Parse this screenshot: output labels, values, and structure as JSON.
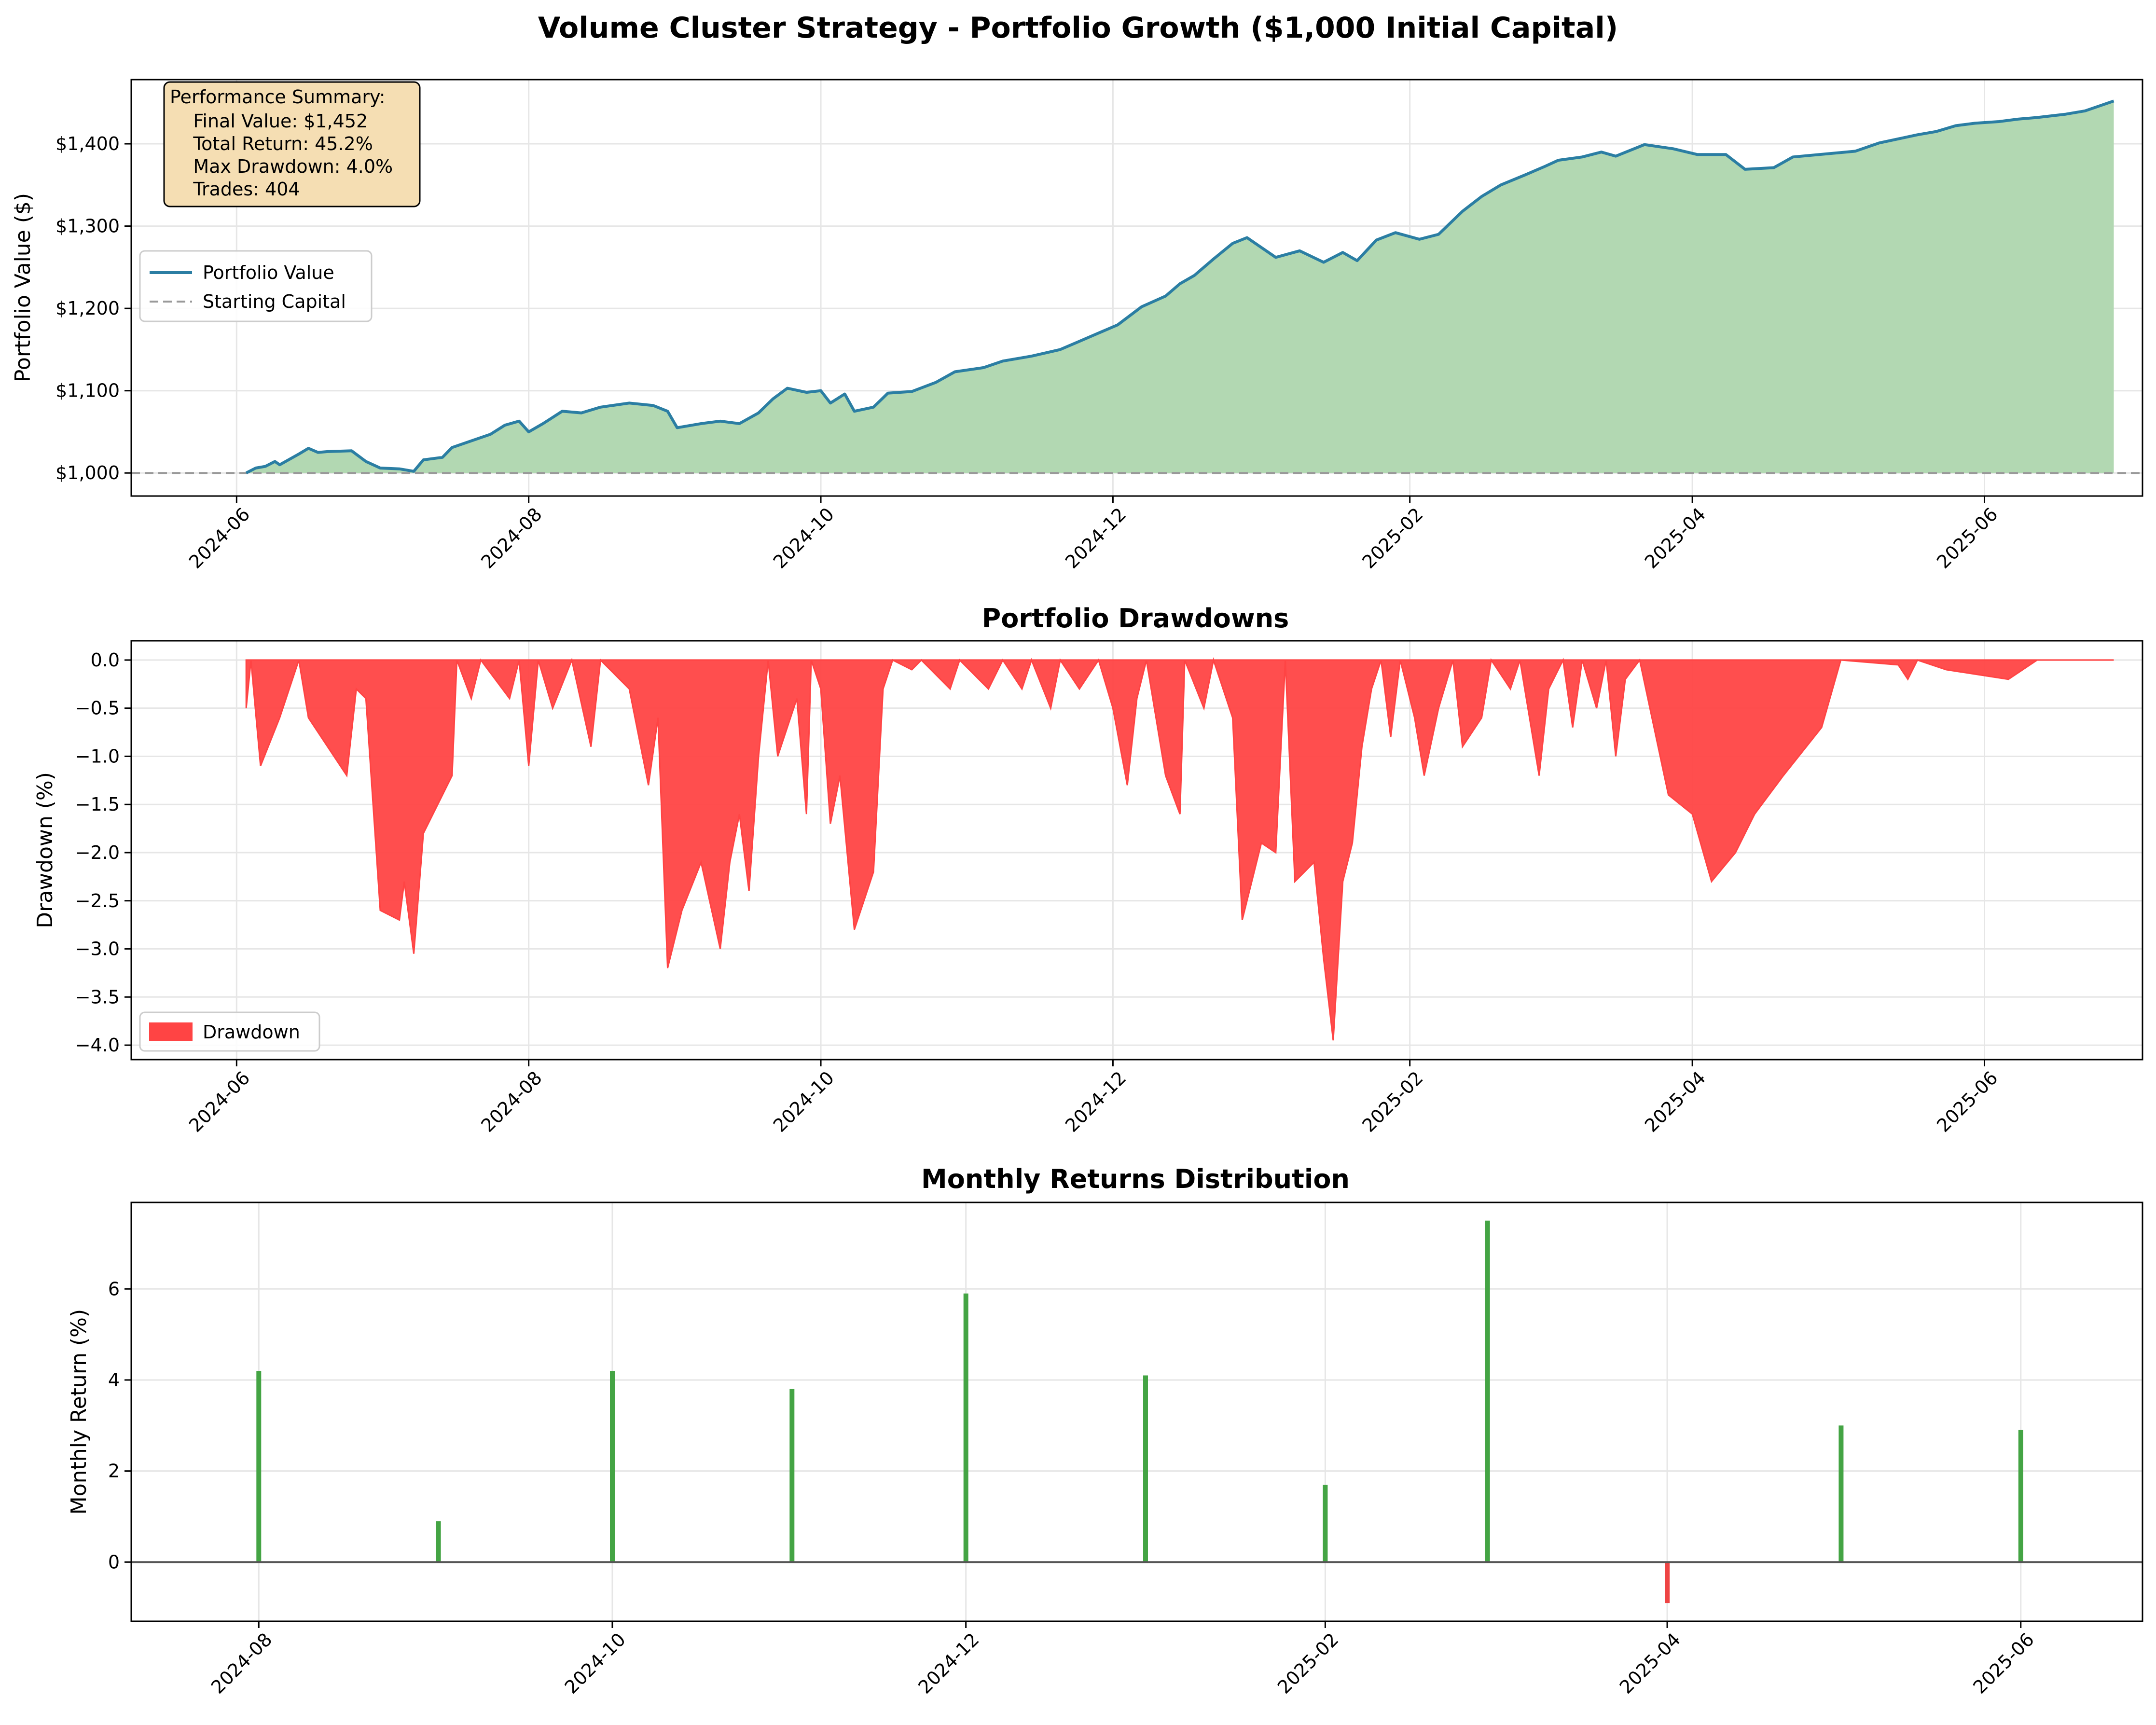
{
  "figure": {
    "title": "Volume Cluster Strategy - Portfolio Growth ($1,000 Initial Capital)"
  },
  "colors": {
    "portfolio_line": "#2b7ea3",
    "portfolio_fill": "#b2d8b2",
    "starting_capital": "#999999",
    "drawdown": "#ff4444",
    "positive_return": "#44a444",
    "negative_return": "#ee4444",
    "summary_box_bg": "#f5deb3",
    "grid": "#e6e6e6"
  },
  "annotation": {
    "lines": [
      "Performance Summary:",
      "    Final Value: $1,452",
      "    Total Return: 45.2%",
      "    Max Drawdown: 4.0%",
      "    Trades: 404"
    ]
  },
  "chart_data": [
    {
      "type": "area",
      "title": "",
      "xlabel": "",
      "ylabel": "Portfolio Value ($)",
      "x_ticks": [
        "2024-06",
        "2024-08",
        "2024-10",
        "2024-12",
        "2025-02",
        "2025-04",
        "2025-06"
      ],
      "y_ticks": [
        "$1,000",
        "$1,100",
        "$1,200",
        "$1,300",
        "$1,400"
      ],
      "ylim": [
        972,
        1478
      ],
      "grid": true,
      "legend": {
        "placement": "upper-left",
        "entries": [
          "Portfolio Value",
          "Starting Capital"
        ]
      },
      "series": [
        {
          "name": "Portfolio Value",
          "points": [
            [
              "2024-06-03",
              1000
            ],
            [
              "2024-06-05",
              1006
            ],
            [
              "2024-06-07",
              1008
            ],
            [
              "2024-06-09",
              1014
            ],
            [
              "2024-06-10",
              1010
            ],
            [
              "2024-06-14",
              1023
            ],
            [
              "2024-06-16",
              1030
            ],
            [
              "2024-06-18",
              1025
            ],
            [
              "2024-06-20",
              1026
            ],
            [
              "2024-06-25",
              1027
            ],
            [
              "2024-06-28",
              1014
            ],
            [
              "2024-07-01",
              1006
            ],
            [
              "2024-07-05",
              1005
            ],
            [
              "2024-07-08",
              1002
            ],
            [
              "2024-07-10",
              1016
            ],
            [
              "2024-07-14",
              1019
            ],
            [
              "2024-07-16",
              1031
            ],
            [
              "2024-07-21",
              1041
            ],
            [
              "2024-07-24",
              1047
            ],
            [
              "2024-07-27",
              1058
            ],
            [
              "2024-07-30",
              1063
            ],
            [
              "2024-08-01",
              1050
            ],
            [
              "2024-08-04",
              1060
            ],
            [
              "2024-08-08",
              1075
            ],
            [
              "2024-08-12",
              1073
            ],
            [
              "2024-08-16",
              1080
            ],
            [
              "2024-08-22",
              1085
            ],
            [
              "2024-08-27",
              1082
            ],
            [
              "2024-08-30",
              1075
            ],
            [
              "2024-09-01",
              1055
            ],
            [
              "2024-09-06",
              1060
            ],
            [
              "2024-09-10",
              1063
            ],
            [
              "2024-09-14",
              1060
            ],
            [
              "2024-09-18",
              1073
            ],
            [
              "2024-09-21",
              1090
            ],
            [
              "2024-09-24",
              1103
            ],
            [
              "2024-09-28",
              1098
            ],
            [
              "2024-10-01",
              1100
            ],
            [
              "2024-10-03",
              1085
            ],
            [
              "2024-10-06",
              1096
            ],
            [
              "2024-10-08",
              1075
            ],
            [
              "2024-10-12",
              1080
            ],
            [
              "2024-10-15",
              1097
            ],
            [
              "2024-10-20",
              1099
            ],
            [
              "2024-10-25",
              1110
            ],
            [
              "2024-10-29",
              1123
            ],
            [
              "2024-11-04",
              1128
            ],
            [
              "2024-11-08",
              1136
            ],
            [
              "2024-11-14",
              1142
            ],
            [
              "2024-11-20",
              1150
            ],
            [
              "2024-11-24",
              1160
            ],
            [
              "2024-11-28",
              1170
            ],
            [
              "2024-12-02",
              1180
            ],
            [
              "2024-12-07",
              1202
            ],
            [
              "2024-12-12",
              1215
            ],
            [
              "2024-12-15",
              1230
            ],
            [
              "2024-12-18",
              1240
            ],
            [
              "2024-12-22",
              1260
            ],
            [
              "2024-12-26",
              1279
            ],
            [
              "2024-12-29",
              1286
            ],
            [
              "2025-01-04",
              1262
            ],
            [
              "2025-01-09",
              1270
            ],
            [
              "2025-01-14",
              1256
            ],
            [
              "2025-01-18",
              1268
            ],
            [
              "2025-01-21",
              1258
            ],
            [
              "2025-01-25",
              1283
            ],
            [
              "2025-01-29",
              1292
            ],
            [
              "2025-02-03",
              1284
            ],
            [
              "2025-02-07",
              1290
            ],
            [
              "2025-02-12",
              1318
            ],
            [
              "2025-02-16",
              1336
            ],
            [
              "2025-02-20",
              1350
            ],
            [
              "2025-02-25",
              1362
            ],
            [
              "2025-03-01",
              1372
            ],
            [
              "2025-03-04",
              1380
            ],
            [
              "2025-03-09",
              1384
            ],
            [
              "2025-03-13",
              1390
            ],
            [
              "2025-03-16",
              1385
            ],
            [
              "2025-03-22",
              1399
            ],
            [
              "2025-03-28",
              1394
            ],
            [
              "2025-04-02",
              1387
            ],
            [
              "2025-04-08",
              1387
            ],
            [
              "2025-04-12",
              1369
            ],
            [
              "2025-04-18",
              1371
            ],
            [
              "2025-04-22",
              1384
            ],
            [
              "2025-05-05",
              1391
            ],
            [
              "2025-05-10",
              1401
            ],
            [
              "2025-05-18",
              1411
            ],
            [
              "2025-05-22",
              1415
            ],
            [
              "2025-05-26",
              1422
            ],
            [
              "2025-05-30",
              1425
            ],
            [
              "2025-06-04",
              1427
            ],
            [
              "2025-06-08",
              1430
            ],
            [
              "2025-06-12",
              1432
            ],
            [
              "2025-06-18",
              1436
            ],
            [
              "2025-06-22",
              1440
            ],
            [
              "2025-06-26",
              1448
            ],
            [
              "2025-06-28",
              1452
            ]
          ]
        },
        {
          "name": "Starting Capital",
          "value": 1000
        }
      ]
    },
    {
      "type": "area",
      "title": "Portfolio Drawdowns",
      "xlabel": "",
      "ylabel": "Drawdown (%)",
      "x_ticks": [
        "2024-06",
        "2024-08",
        "2024-10",
        "2024-12",
        "2025-02",
        "2025-04",
        "2025-06"
      ],
      "y_ticks": [
        "0.0",
        "−0.5",
        "−1.0",
        "−1.5",
        "−2.0",
        "−2.5",
        "−3.0",
        "−3.5",
        "−4.0"
      ],
      "ylim": [
        -4.15,
        0.2
      ],
      "grid": true,
      "legend": {
        "placement": "lower-left",
        "entries": [
          "Drawdown"
        ]
      },
      "series": [
        {
          "name": "Drawdown",
          "points": [
            [
              "2024-06-03",
              -0.5
            ],
            [
              "2024-06-04",
              0
            ],
            [
              "2024-06-06",
              -1.1
            ],
            [
              "2024-06-10",
              -0.6
            ],
            [
              "2024-06-14",
              0
            ],
            [
              "2024-06-16",
              -0.6
            ],
            [
              "2024-06-24",
              -1.2
            ],
            [
              "2024-06-26",
              -0.3
            ],
            [
              "2024-06-28",
              -0.4
            ],
            [
              "2024-07-01",
              -2.6
            ],
            [
              "2024-07-05",
              -2.7
            ],
            [
              "2024-07-06",
              -2.3
            ],
            [
              "2024-07-08",
              -3.05
            ],
            [
              "2024-07-10",
              -1.8
            ],
            [
              "2024-07-16",
              -1.2
            ],
            [
              "2024-07-17",
              0
            ],
            [
              "2024-07-20",
              -0.4
            ],
            [
              "2024-07-22",
              0
            ],
            [
              "2024-07-28",
              -0.4
            ],
            [
              "2024-07-30",
              0
            ],
            [
              "2024-08-01",
              -1.1
            ],
            [
              "2024-08-03",
              0
            ],
            [
              "2024-08-06",
              -0.5
            ],
            [
              "2024-08-10",
              0
            ],
            [
              "2024-08-14",
              -0.9
            ],
            [
              "2024-08-16",
              0
            ],
            [
              "2024-08-22",
              -0.3
            ],
            [
              "2024-08-26",
              -1.3
            ],
            [
              "2024-08-28",
              -0.6
            ],
            [
              "2024-08-30",
              -3.2
            ],
            [
              "2024-09-02",
              -2.6
            ],
            [
              "2024-09-06",
              -2.1
            ],
            [
              "2024-09-10",
              -3.0
            ],
            [
              "2024-09-12",
              -2.1
            ],
            [
              "2024-09-14",
              -1.6
            ],
            [
              "2024-09-16",
              -2.4
            ],
            [
              "2024-09-18",
              -1.0
            ],
            [
              "2024-09-20",
              0
            ],
            [
              "2024-09-22",
              -1.0
            ],
            [
              "2024-09-26",
              -0.4
            ],
            [
              "2024-09-28",
              -1.6
            ],
            [
              "2024-09-29",
              0
            ],
            [
              "2024-10-01",
              -0.3
            ],
            [
              "2024-10-03",
              -1.7
            ],
            [
              "2024-10-05",
              -1.2
            ],
            [
              "2024-10-08",
              -2.8
            ],
            [
              "2024-10-12",
              -2.2
            ],
            [
              "2024-10-14",
              -0.3
            ],
            [
              "2024-10-16",
              0
            ],
            [
              "2024-10-20",
              -0.1
            ],
            [
              "2024-10-22",
              0
            ],
            [
              "2024-10-28",
              -0.3
            ],
            [
              "2024-10-30",
              0
            ],
            [
              "2024-11-05",
              -0.3
            ],
            [
              "2024-11-08",
              0
            ],
            [
              "2024-11-12",
              -0.3
            ],
            [
              "2024-11-14",
              0
            ],
            [
              "2024-11-18",
              -0.5
            ],
            [
              "2024-11-20",
              0
            ],
            [
              "2024-11-24",
              -0.3
            ],
            [
              "2024-11-28",
              0
            ],
            [
              "2024-12-01",
              -0.5
            ],
            [
              "2024-12-04",
              -1.3
            ],
            [
              "2024-12-06",
              -0.4
            ],
            [
              "2024-12-08",
              0
            ],
            [
              "2024-12-12",
              -1.2
            ],
            [
              "2024-12-15",
              -1.6
            ],
            [
              "2024-12-16",
              0
            ],
            [
              "2024-12-20",
              -0.5
            ],
            [
              "2024-12-22",
              0
            ],
            [
              "2024-12-26",
              -0.6
            ],
            [
              "2024-12-28",
              -2.7
            ],
            [
              "2025-01-01",
              -1.9
            ],
            [
              "2025-01-04",
              -2.0
            ],
            [
              "2025-01-06",
              0
            ],
            [
              "2025-01-08",
              -2.3
            ],
            [
              "2025-01-12",
              -2.1
            ],
            [
              "2025-01-14",
              -3.1
            ],
            [
              "2025-01-16",
              -3.95
            ],
            [
              "2025-01-18",
              -2.3
            ],
            [
              "2025-01-20",
              -1.9
            ],
            [
              "2025-01-22",
              -0.9
            ],
            [
              "2025-01-24",
              -0.3
            ],
            [
              "2025-01-26",
              0
            ],
            [
              "2025-01-28",
              -0.8
            ],
            [
              "2025-01-30",
              0
            ],
            [
              "2025-02-02",
              -0.6
            ],
            [
              "2025-02-04",
              -1.2
            ],
            [
              "2025-02-07",
              -0.5
            ],
            [
              "2025-02-10",
              0
            ],
            [
              "2025-02-12",
              -0.9
            ],
            [
              "2025-02-16",
              -0.6
            ],
            [
              "2025-02-18",
              0
            ],
            [
              "2025-02-22",
              -0.3
            ],
            [
              "2025-02-24",
              0
            ],
            [
              "2025-02-28",
              -1.2
            ],
            [
              "2025-03-02",
              -0.3
            ],
            [
              "2025-03-05",
              0
            ],
            [
              "2025-03-07",
              -0.7
            ],
            [
              "2025-03-09",
              0
            ],
            [
              "2025-03-12",
              -0.5
            ],
            [
              "2025-03-14",
              0
            ],
            [
              "2025-03-16",
              -1.0
            ],
            [
              "2025-03-18",
              -0.2
            ],
            [
              "2025-03-21",
              0
            ],
            [
              "2025-03-27",
              -1.4
            ],
            [
              "2025-04-01",
              -1.6
            ],
            [
              "2025-04-05",
              -2.3
            ],
            [
              "2025-04-10",
              -2.0
            ],
            [
              "2025-04-14",
              -1.6
            ],
            [
              "2025-04-20",
              -1.2
            ],
            [
              "2025-04-28",
              -0.7
            ],
            [
              "2025-05-02",
              0
            ],
            [
              "2025-05-14",
              -0.05
            ],
            [
              "2025-05-16",
              -0.2
            ],
            [
              "2025-05-18",
              0
            ],
            [
              "2025-05-24",
              -0.1
            ],
            [
              "2025-06-06",
              -0.2
            ],
            [
              "2025-06-12",
              0
            ],
            [
              "2025-06-28",
              0
            ]
          ]
        }
      ]
    },
    {
      "type": "bar",
      "title": "Monthly Returns Distribution",
      "xlabel": "",
      "ylabel": "Monthly Return (%)",
      "x_ticks": [
        "2024-08",
        "2024-10",
        "2024-12",
        "2025-02",
        "2025-04",
        "2025-06"
      ],
      "y_ticks": [
        "0",
        "2",
        "4",
        "6"
      ],
      "ylim": [
        -1.3,
        7.9
      ],
      "grid": true,
      "categories": [
        "2024-07-31",
        "2024-08-31",
        "2024-09-30",
        "2024-10-31",
        "2024-11-30",
        "2024-12-31",
        "2025-01-31",
        "2025-02-28",
        "2025-03-31",
        "2025-04-30",
        "2025-05-31"
      ],
      "values": [
        4.2,
        0.9,
        4.2,
        3.8,
        5.9,
        4.1,
        1.7,
        7.5,
        -0.9,
        3.0,
        2.9
      ]
    }
  ]
}
